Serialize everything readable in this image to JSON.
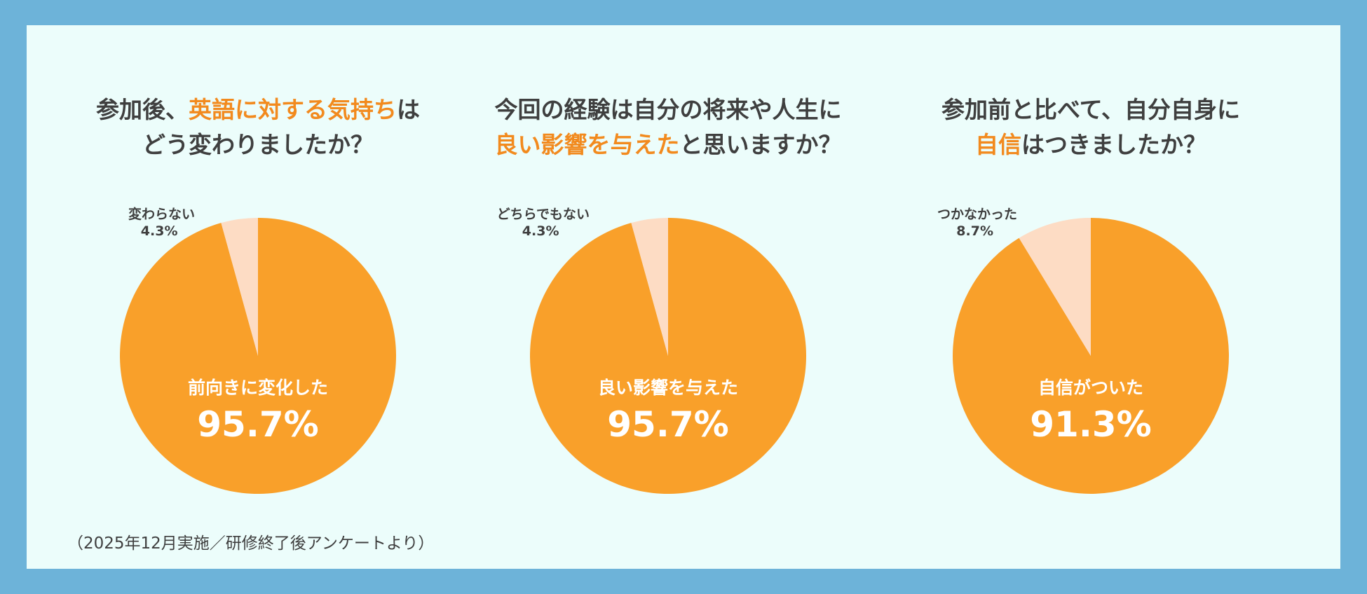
{
  "colors": {
    "frame": "#6db3d9",
    "panel": "#ecfdfb",
    "major": "#f9a02a",
    "minor": "#fddcc4",
    "highlight": "#f28a1e",
    "text": "#3f3f3f"
  },
  "chart_data": [
    {
      "type": "pie",
      "title_parts": [
        {
          "text": "参加後、",
          "highlight": false
        },
        {
          "text": "英語に対する気持ち",
          "highlight": true
        },
        {
          "text": "は",
          "highlight": false
        },
        {
          "br": true
        },
        {
          "text": "どう変わりましたか？",
          "highlight": false
        }
      ],
      "slices": [
        {
          "label": "前向きに変化した",
          "value": 95.7,
          "display": "95.7%"
        },
        {
          "label": "変わらない",
          "value": 4.3,
          "display": "4.3%"
        }
      ]
    },
    {
      "type": "pie",
      "title_parts": [
        {
          "text": "今回の経験は自分の将来や人生に",
          "highlight": false
        },
        {
          "br": true
        },
        {
          "text": "良い影響を与えた",
          "highlight": true
        },
        {
          "text": "と思いますか？",
          "highlight": false
        }
      ],
      "slices": [
        {
          "label": "良い影響を与えた",
          "value": 95.7,
          "display": "95.7%"
        },
        {
          "label": "どちらでもない",
          "value": 4.3,
          "display": "4.3%"
        }
      ]
    },
    {
      "type": "pie",
      "title_parts": [
        {
          "text": "参加前と比べて、自分自身に",
          "highlight": false
        },
        {
          "br": true
        },
        {
          "text": "自信",
          "highlight": true
        },
        {
          "text": "はつきましたか？",
          "highlight": false
        }
      ],
      "slices": [
        {
          "label": "自信がついた",
          "value": 91.3,
          "display": "91.3%"
        },
        {
          "label": "つかなかった",
          "value": 8.7,
          "display": "8.7%"
        }
      ]
    }
  ],
  "footnote": "（2025年12月実施／研修終了後アンケートより）"
}
